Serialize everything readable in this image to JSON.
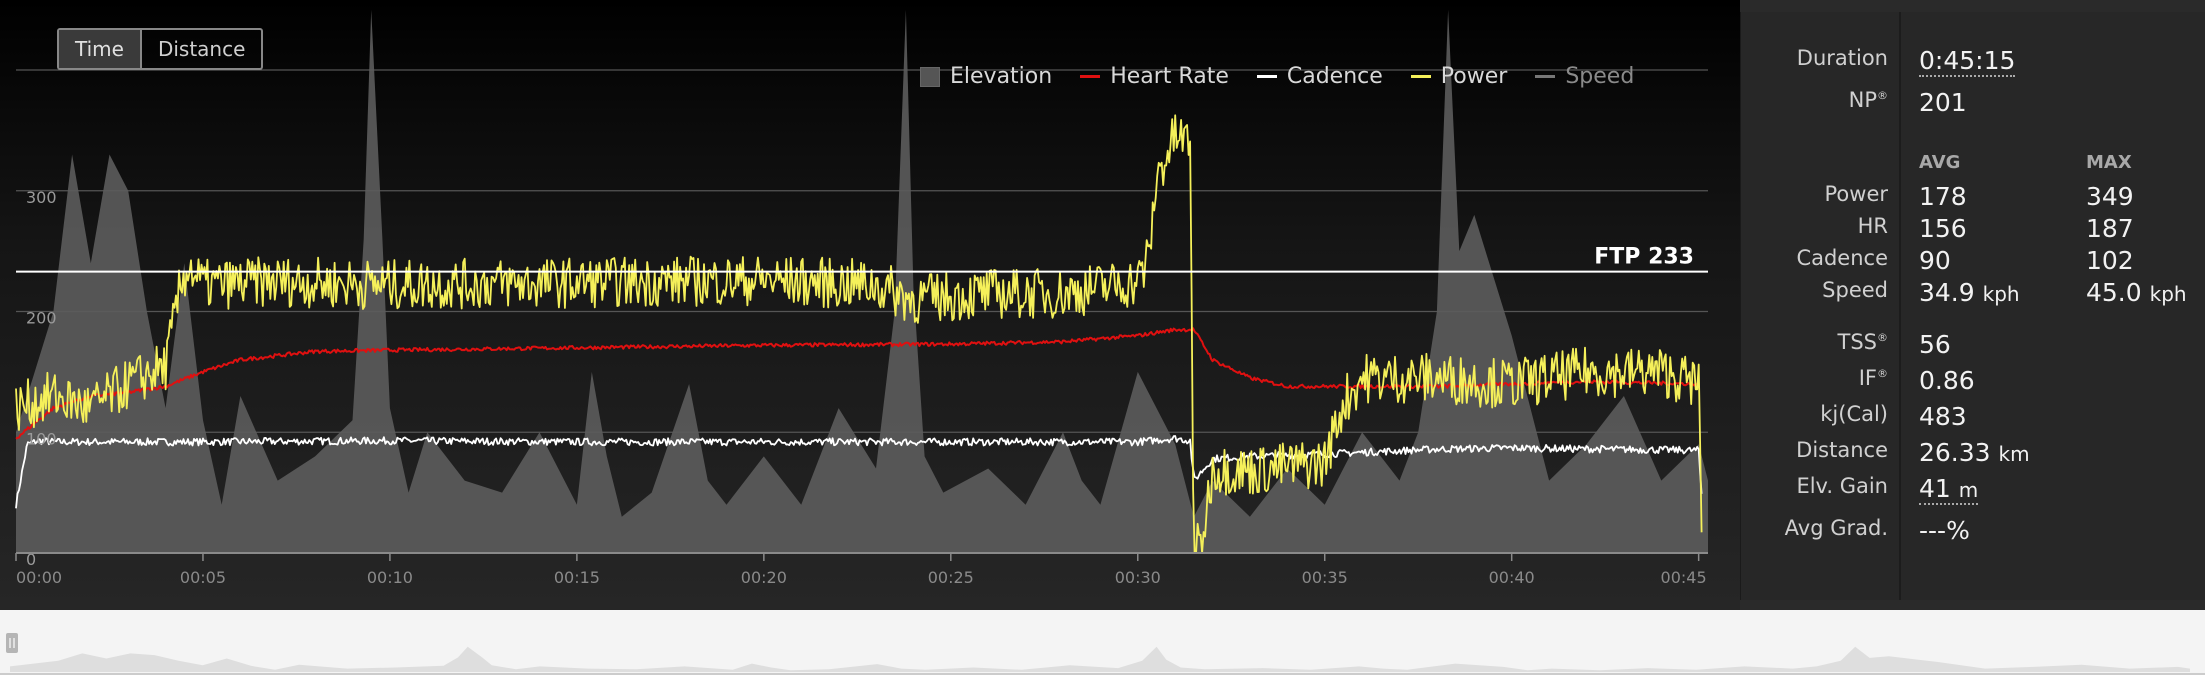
{
  "toggle": {
    "time": "Time",
    "distance": "Distance"
  },
  "legend": [
    "Elevation",
    "Heart Rate",
    "Cadence",
    "Power",
    "Speed"
  ],
  "colors": {
    "power": "#f5f05a",
    "heart_rate": "#e01010",
    "cadence": "#ffffff",
    "elevation": "#5c5c5c",
    "speed": "#8a8a8a"
  },
  "stats": {
    "duration_label": "Duration",
    "duration": "0:45:15",
    "np_label": "NP",
    "np": "201",
    "avg_header": "AVG",
    "max_header": "MAX",
    "power_label": "Power",
    "power_avg": "178",
    "power_max": "349",
    "hr_label": "HR",
    "hr_avg": "156",
    "hr_max": "187",
    "cadence_label": "Cadence",
    "cadence_avg": "90",
    "cadence_max": "102",
    "speed_label": "Speed",
    "speed_avg": "34.9",
    "speed_max": "45.0",
    "speed_unit": "kph",
    "tss_label": "TSS",
    "tss": "56",
    "if_label": "IF",
    "if": "0.86",
    "kj_label": "kj(Cal)",
    "kj": "483",
    "distance_label": "Distance",
    "distance": "26.33",
    "distance_unit": "km",
    "elv_label": "Elv. Gain",
    "elv": "41",
    "elv_unit": "m",
    "grad_label": "Avg Grad.",
    "grad": "---%"
  },
  "chart_data": {
    "type": "line",
    "x_unit": "minutes",
    "xlim": [
      0,
      45.25
    ],
    "ylim": [
      0,
      400
    ],
    "y_ticks": [
      "0",
      "100",
      "200",
      "300"
    ],
    "x_ticks": [
      "00:00",
      "00:05",
      "00:10",
      "00:15",
      "00:20",
      "00:25",
      "00:30",
      "00:35",
      "00:40",
      "00:45"
    ],
    "ftp": {
      "label": "FTP 233",
      "value": 233
    },
    "series": [
      {
        "name": "Power",
        "x": [
          0,
          1,
          2,
          3,
          4,
          4.4,
          4.6,
          5,
          7,
          10,
          15,
          20,
          23,
          24,
          26,
          28,
          30,
          30.3,
          30.5,
          31,
          31.4,
          31.5,
          31.7,
          32,
          33,
          35,
          35.5,
          36,
          38,
          40,
          42,
          44,
          45,
          45.1
        ],
        "values": [
          120,
          130,
          120,
          140,
          155,
          220,
          238,
          222,
          225,
          222,
          224,
          226,
          222,
          210,
          215,
          215,
          225,
          245,
          310,
          345,
          340,
          2,
          5,
          70,
          68,
          75,
          125,
          145,
          145,
          140,
          150,
          150,
          140,
          3
        ]
      },
      {
        "name": "Heart Rate",
        "x": [
          0,
          1,
          2,
          3,
          4,
          5,
          6,
          8,
          10,
          15,
          20,
          25,
          28,
          30,
          31,
          31.5,
          32,
          33,
          34,
          35,
          38,
          40,
          42,
          45
        ],
        "values": [
          95,
          120,
          130,
          133,
          138,
          150,
          160,
          167,
          168,
          170,
          172,
          173,
          175,
          180,
          185,
          185,
          160,
          145,
          138,
          138,
          138,
          140,
          142,
          140
        ]
      },
      {
        "name": "Cadence",
        "x": [
          0,
          0.3,
          0.6,
          1,
          5,
          10,
          15,
          20,
          25,
          30,
          31,
          31.4,
          31.5,
          32,
          33,
          35,
          38,
          40,
          45,
          45.1
        ],
        "values": [
          40,
          90,
          93,
          92,
          92,
          93,
          92,
          92,
          92,
          92,
          95,
          93,
          60,
          78,
          80,
          82,
          86,
          87,
          85,
          40
        ]
      },
      {
        "name": "Elevation",
        "x": [
          0,
          1,
          1.5,
          2,
          2.5,
          3,
          3.5,
          4,
          4.5,
          5,
          5.5,
          6,
          7,
          8,
          9,
          9.3,
          9.5,
          9.8,
          10,
          10.5,
          11,
          12,
          13,
          14,
          15,
          15.4,
          15.8,
          16.2,
          17,
          18,
          18.5,
          19,
          20,
          21,
          22,
          23,
          23.5,
          23.8,
          24,
          24.3,
          24.8,
          26,
          27,
          28,
          28.5,
          29,
          30,
          31,
          31.5,
          32,
          33,
          34,
          35,
          36,
          37,
          37.5,
          38,
          38.3,
          38.6,
          39,
          39.5,
          40,
          41,
          42,
          43,
          44,
          45,
          45.25
        ],
        "values": [
          100,
          200,
          330,
          240,
          330,
          300,
          200,
          120,
          240,
          110,
          40,
          130,
          60,
          80,
          110,
          260,
          450,
          260,
          120,
          50,
          100,
          60,
          50,
          100,
          40,
          150,
          80,
          30,
          50,
          140,
          60,
          40,
          80,
          40,
          120,
          70,
          200,
          450,
          220,
          80,
          50,
          70,
          40,
          100,
          60,
          40,
          150,
          90,
          30,
          60,
          30,
          70,
          40,
          100,
          60,
          100,
          200,
          450,
          250,
          280,
          230,
          180,
          60,
          90,
          130,
          60,
          90,
          60
        ]
      }
    ]
  }
}
